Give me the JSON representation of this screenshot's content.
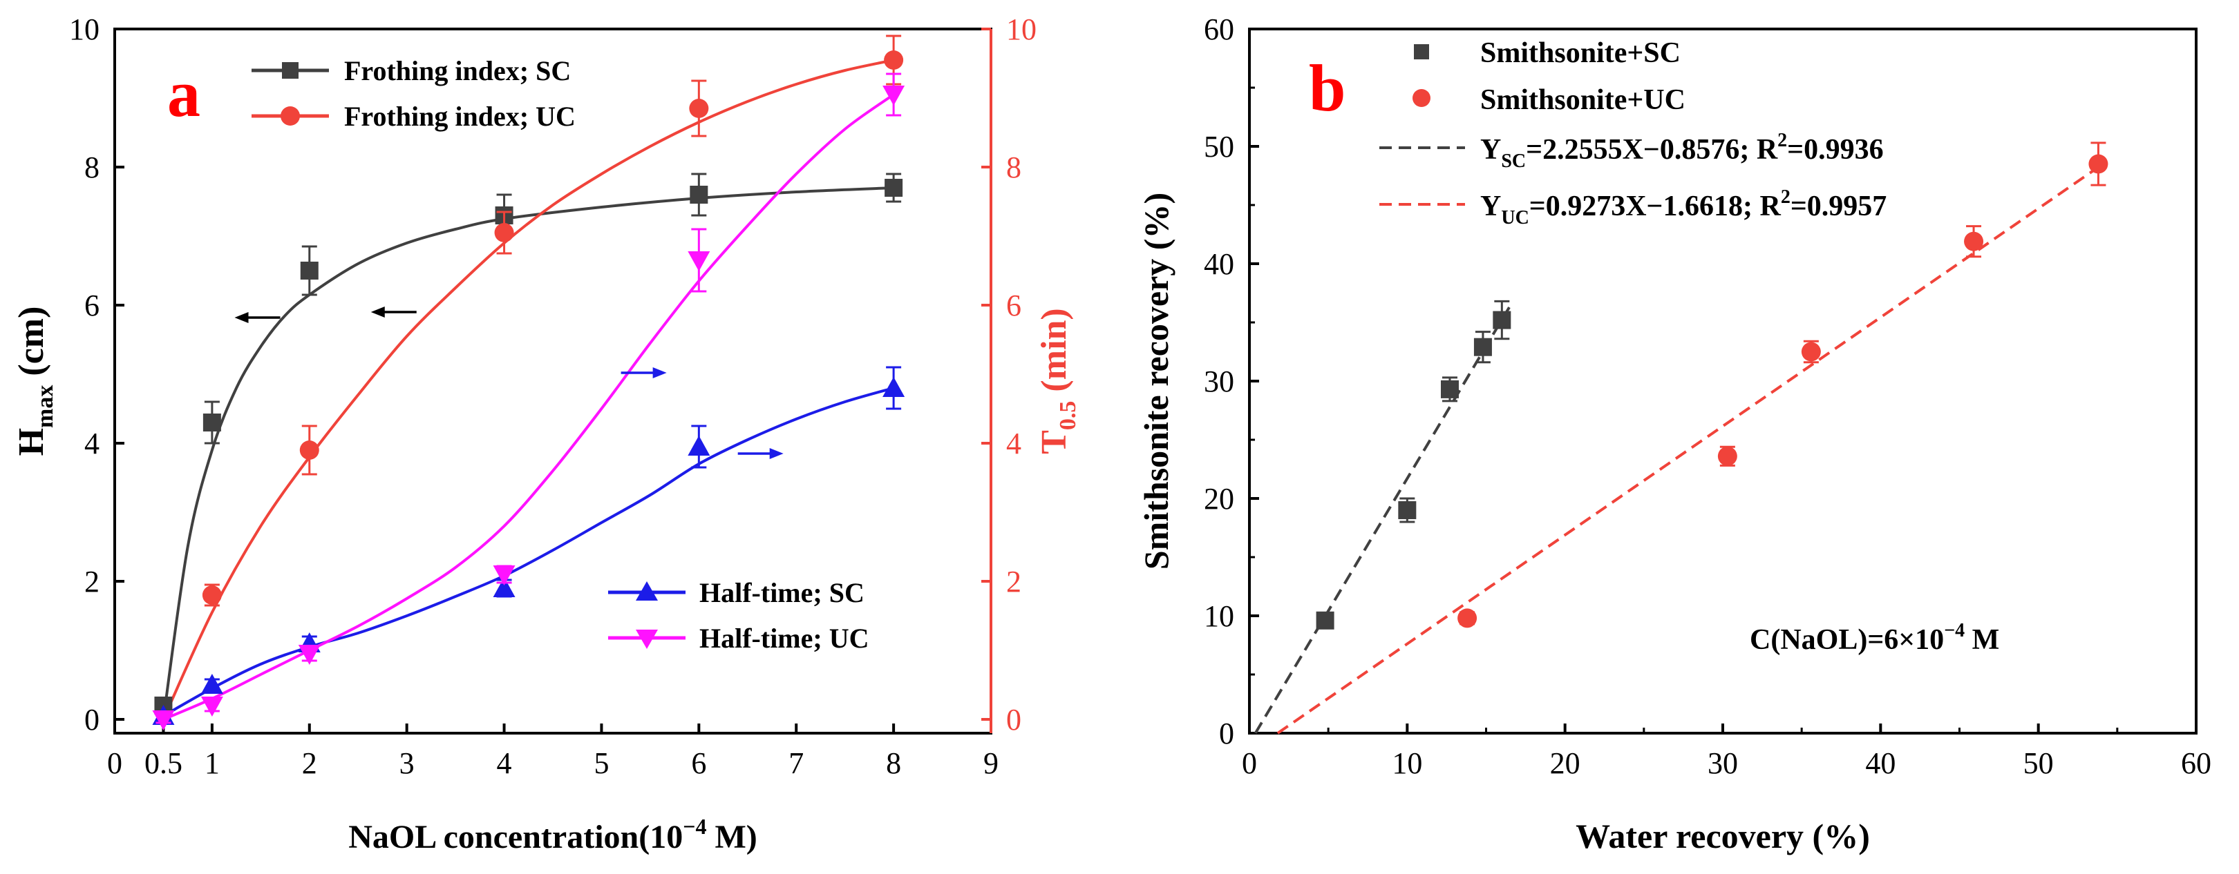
{
  "chart_data": [
    {
      "panel_label": "a",
      "type": "line",
      "xlabel": "NaOL concentration(10",
      "xlabel_sup": "−4",
      "xlabel_end": " M)",
      "ylabel_left": "H",
      "ylabel_left_sub": "max",
      "ylabel_left_end": " (cm)",
      "ylabel_right": "T",
      "ylabel_right_sub": "0.5",
      "ylabel_right_end": " (min)",
      "xlim": [
        0,
        9
      ],
      "ylim_left": [
        -0.2,
        10
      ],
      "ylim_right": [
        -0.2,
        10
      ],
      "x_ticks": [
        "0",
        "0.5",
        "1",
        "2",
        "3",
        "4",
        "5",
        "6",
        "7",
        "8",
        "9"
      ],
      "y_ticks_left": [
        "0",
        "2",
        "4",
        "6",
        "8",
        "10"
      ],
      "y_ticks_right": [
        "0",
        "2",
        "4",
        "6",
        "8",
        "10"
      ],
      "series": [
        {
          "name": "Frothing index; SC",
          "axis": "left",
          "color": "#404040",
          "marker": "square",
          "x": [
            0.5,
            1,
            2,
            4,
            6,
            8
          ],
          "y": [
            0.2,
            4.3,
            6.5,
            7.3,
            7.6,
            7.7
          ],
          "err": [
            0.1,
            0.3,
            0.35,
            0.3,
            0.3,
            0.2
          ],
          "fit_x": [
            0.5,
            0.75,
            1,
            1.25,
            1.5,
            1.75,
            2,
            2.5,
            3,
            3.5,
            4,
            5,
            6,
            7,
            8
          ],
          "fit_y": [
            0.0,
            2.5,
            3.9,
            4.8,
            5.4,
            5.85,
            6.15,
            6.6,
            6.9,
            7.1,
            7.25,
            7.42,
            7.55,
            7.64,
            7.7
          ]
        },
        {
          "name": "Frothing index; UC",
          "axis": "right",
          "color": "#f0433a",
          "marker": "circle",
          "x": [
            1,
            2,
            4,
            6,
            8
          ],
          "y": [
            1.8,
            3.9,
            7.05,
            8.85,
            9.55
          ],
          "err": [
            0.15,
            0.35,
            0.3,
            0.4,
            0.35
          ],
          "fit_x": [
            0.5,
            1,
            1.5,
            2,
            2.5,
            3,
            3.5,
            4,
            4.5,
            5,
            5.5,
            6,
            6.5,
            7,
            7.5,
            8
          ],
          "fit_y": [
            0.0,
            1.55,
            2.8,
            3.8,
            4.7,
            5.55,
            6.25,
            6.9,
            7.45,
            7.9,
            8.3,
            8.65,
            8.95,
            9.2,
            9.4,
            9.55
          ]
        },
        {
          "name": "Half-time; SC",
          "axis": "left",
          "color": "#1c1ce8",
          "marker": "triangle-up",
          "x": [
            0.5,
            1,
            2,
            4,
            6,
            8
          ],
          "y": [
            0.05,
            0.5,
            1.1,
            1.9,
            3.95,
            4.8
          ],
          "err": [
            0.05,
            0.08,
            0.1,
            0.12,
            0.3,
            0.3
          ],
          "fit_x": [
            0.5,
            1,
            1.5,
            2,
            2.5,
            3,
            3.5,
            4,
            4.5,
            5,
            5.5,
            6,
            6.5,
            7,
            7.5,
            8
          ],
          "fit_y": [
            0.05,
            0.45,
            0.8,
            1.05,
            1.25,
            1.5,
            1.78,
            2.08,
            2.45,
            2.85,
            3.25,
            3.7,
            4.05,
            4.35,
            4.6,
            4.8
          ]
        },
        {
          "name": "Half-time; UC",
          "axis": "right",
          "color": "#ff12ff",
          "marker": "triangle-down",
          "x": [
            0.5,
            1,
            2,
            4,
            6,
            8
          ],
          "y": [
            0.0,
            0.2,
            0.95,
            2.1,
            6.65,
            9.05
          ],
          "err": [
            0.05,
            0.08,
            0.1,
            0.12,
            0.45,
            0.3
          ],
          "fit_x": [
            0.5,
            1,
            1.5,
            2,
            2.5,
            3,
            3.5,
            4,
            4.5,
            5,
            5.5,
            6,
            6.5,
            7,
            7.5,
            8
          ],
          "fit_y": [
            0.0,
            0.3,
            0.65,
            1.0,
            1.35,
            1.75,
            2.2,
            2.8,
            3.6,
            4.5,
            5.45,
            6.35,
            7.15,
            7.9,
            8.55,
            9.05
          ]
        }
      ],
      "arrows": [
        {
          "x": 1.7,
          "y": 5.82,
          "dir": "left",
          "color": "#000000"
        },
        {
          "x": 3.1,
          "y": 5.9,
          "dir": "left",
          "color": "#000000"
        },
        {
          "x": 5.2,
          "y": 5.02,
          "dir": "right",
          "color": "#1c1ce8"
        },
        {
          "x": 6.4,
          "y": 3.85,
          "dir": "right",
          "color": "#1c1ce8"
        }
      ]
    },
    {
      "panel_label": "b",
      "type": "scatter",
      "xlabel": "Water recovery (%)",
      "ylabel": "Smithsonite recovery (%)",
      "xlim": [
        0,
        60
      ],
      "ylim": [
        0,
        60
      ],
      "x_ticks": [
        "0",
        "10",
        "20",
        "30",
        "40",
        "50",
        "60"
      ],
      "y_ticks": [
        "0",
        "10",
        "20",
        "30",
        "40",
        "50",
        "60"
      ],
      "annotation": "C(NaOL)=6×10",
      "annotation_sup": "−4",
      "annotation_end": " M",
      "series": [
        {
          "name": "Smithsonite+SC",
          "color": "#404040",
          "marker": "square",
          "x": [
            4.8,
            10.0,
            12.7,
            14.8,
            16.0
          ],
          "y": [
            9.6,
            19.0,
            29.3,
            32.9,
            35.2
          ],
          "err": [
            0.4,
            1.0,
            1.0,
            1.3,
            1.6
          ]
        },
        {
          "name": "Smithsonite+UC",
          "color": "#f0433a",
          "marker": "circle",
          "x": [
            13.8,
            30.3,
            35.6,
            45.9,
            53.8
          ],
          "y": [
            9.8,
            23.6,
            32.5,
            41.9,
            48.5
          ],
          "err": [
            0.5,
            0.8,
            0.9,
            1.3,
            1.8
          ]
        }
      ],
      "fits": [
        {
          "label_y": "Y",
          "label_sub": "SC",
          "label_rest": "=2.2555X−0.8576; R",
          "label_sup": "2",
          "label_end": "=0.9936",
          "slope": 2.2555,
          "intercept": -0.8576,
          "x_range": [
            0,
            16.5
          ],
          "color": "#404040"
        },
        {
          "label_y": "Y",
          "label_sub": "UC",
          "label_rest": "=0.9273X−1.6618; R",
          "label_sup": "2",
          "label_end": "=0.9957",
          "slope": 0.9273,
          "intercept": -1.6618,
          "x_range": [
            0,
            54
          ],
          "color": "#f0433a"
        }
      ]
    }
  ]
}
